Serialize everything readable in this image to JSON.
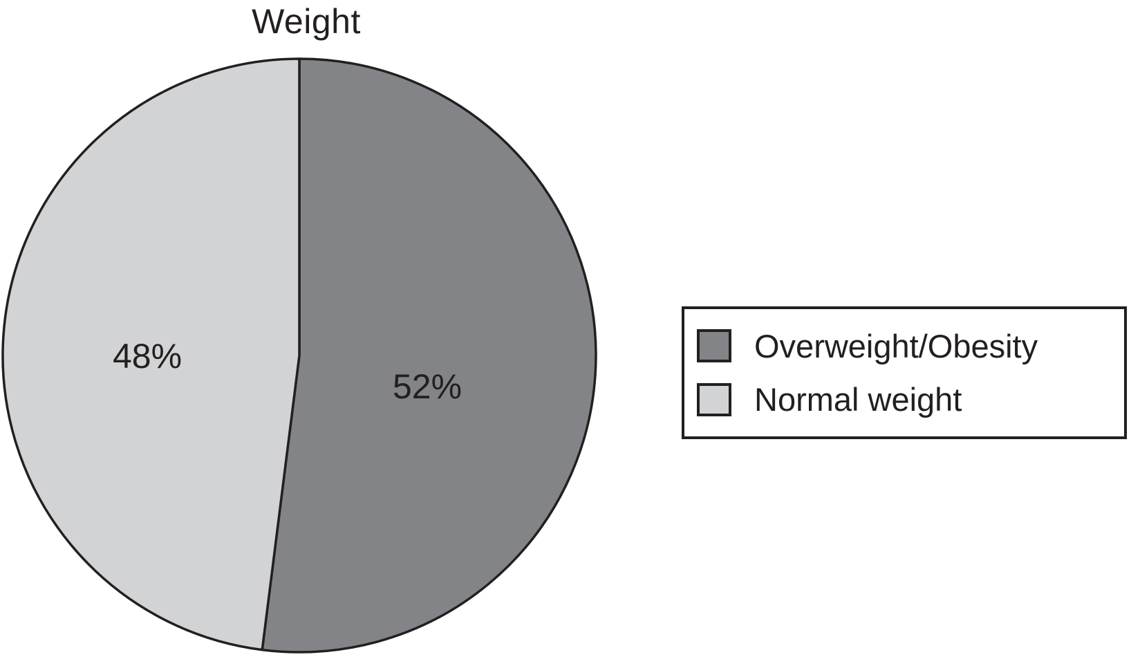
{
  "chart_data": {
    "type": "pie",
    "title": "Weight",
    "slices": [
      {
        "label": "Overweight/Obesity",
        "value": 52,
        "display": "52%",
        "color": "#828487"
      },
      {
        "label": "Normal weight",
        "value": 48,
        "display": "48%",
        "color": "#d1d3d4"
      }
    ],
    "start_angle_deg": 0,
    "direction": "clockwise",
    "outline_color": "#231f20",
    "text_color": "#231f20",
    "legend_position": "right",
    "legend_items": [
      {
        "label": "Overweight/Obesity"
      },
      {
        "label": "Normal weight"
      }
    ]
  }
}
